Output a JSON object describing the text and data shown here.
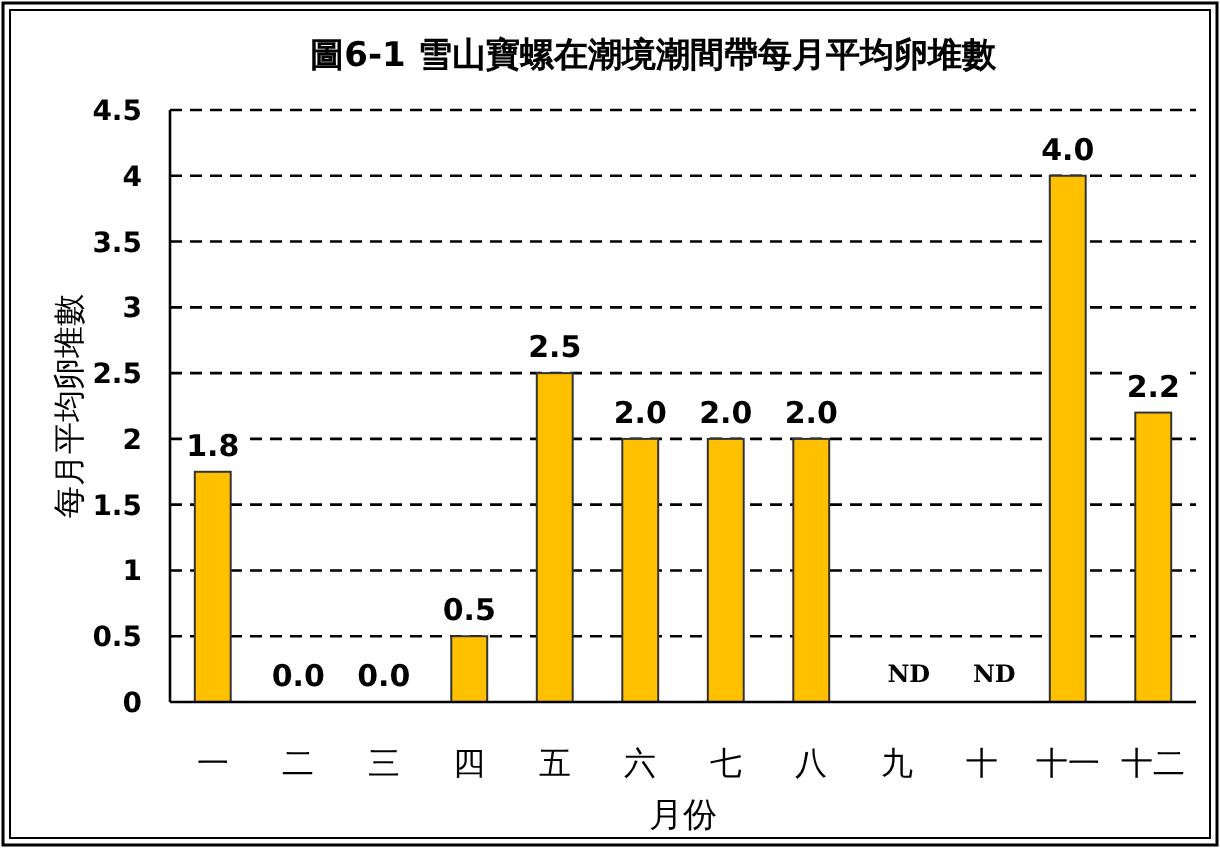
{
  "chart_data": {
    "type": "bar",
    "title": "圖6-1 雪山寶螺在潮境潮間帶每月平均卵堆數",
    "xlabel": "月份",
    "ylabel": "每月平均卵堆數",
    "categories": [
      "一",
      "二",
      "三",
      "四",
      "五",
      "六",
      "七",
      "八",
      "九",
      "十",
      "十一",
      "十二"
    ],
    "values": [
      1.75,
      0.0,
      0.0,
      0.5,
      2.5,
      2.0,
      2.0,
      2.0,
      null,
      null,
      4.0,
      2.2
    ],
    "value_labels": [
      "1.8",
      "0.0",
      "0.0",
      "0.5",
      "2.5",
      "2.0",
      "2.0",
      "2.0",
      "ND",
      "ND",
      "4.0",
      "2.2"
    ],
    "color": "#ffc000",
    "ylim": [
      0,
      4.5
    ],
    "yticks": [
      0,
      0.5,
      1,
      1.5,
      2,
      2.5,
      3,
      3.5,
      4,
      4.5
    ],
    "grid": "y"
  }
}
